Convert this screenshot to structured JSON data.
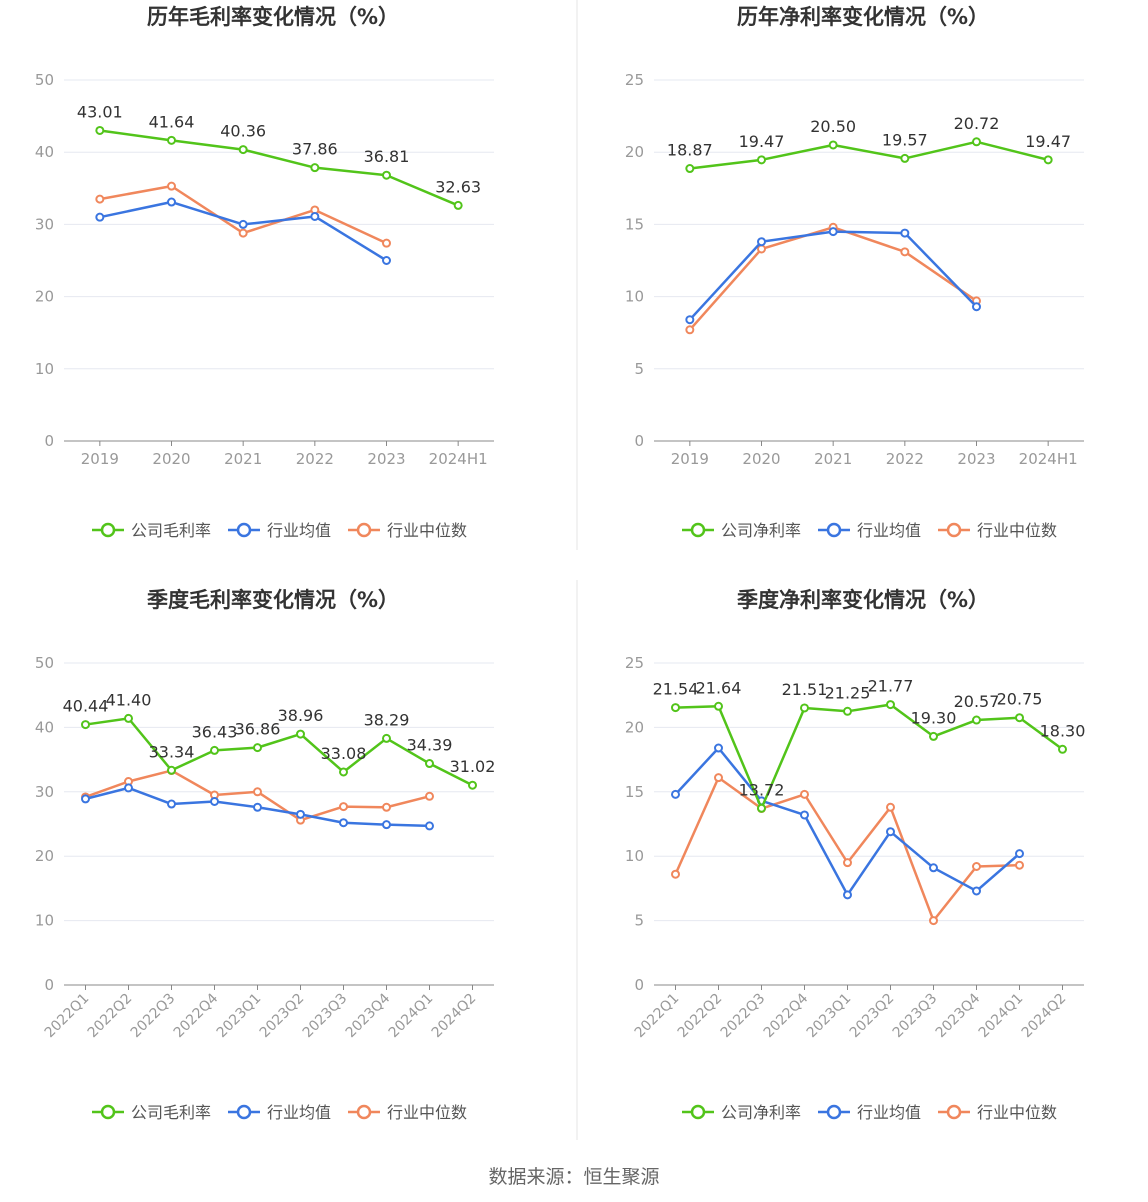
{
  "colors": {
    "company": "#52c41a",
    "industry_avg": "#3a75e0",
    "industry_median": "#f0875c",
    "axis": "#888888",
    "axis_label": "#999999",
    "grid": "#e6e8f0",
    "title": "#333333",
    "value_label": "#333333",
    "legend_text": "#555555",
    "divider": "#e5e5e5"
  },
  "legend_labels": {
    "avg": "行业均值",
    "median": "行业中位数"
  },
  "source": "数据来源：恒生聚源",
  "chart_data": [
    {
      "type": "line",
      "title": "历年毛利率变化情况（%）",
      "categories": [
        "2019",
        "2020",
        "2021",
        "2022",
        "2023",
        "2024H1"
      ],
      "ylim": [
        0,
        50
      ],
      "yticks": [
        0,
        10,
        20,
        30,
        40,
        50
      ],
      "rotate_x_labels": false,
      "grid": true,
      "legend_position": "bottom",
      "series": [
        {
          "key": "company",
          "name": "公司毛利率",
          "labels": true,
          "values": [
            43.01,
            41.64,
            40.36,
            37.86,
            36.81,
            32.63
          ]
        },
        {
          "key": "industry_avg",
          "name": "行业均值",
          "labels": false,
          "values": [
            31.0,
            33.1,
            30.0,
            31.1,
            25.0,
            null
          ]
        },
        {
          "key": "industry_median",
          "name": "行业中位数",
          "labels": false,
          "values": [
            33.5,
            35.3,
            28.8,
            32.0,
            27.4,
            null
          ]
        }
      ]
    },
    {
      "type": "line",
      "title": "历年净利率变化情况（%）",
      "categories": [
        "2019",
        "2020",
        "2021",
        "2022",
        "2023",
        "2024H1"
      ],
      "ylim": [
        0,
        25
      ],
      "yticks": [
        0,
        5,
        10,
        15,
        20,
        25
      ],
      "rotate_x_labels": false,
      "grid": true,
      "legend_position": "bottom",
      "series": [
        {
          "key": "company",
          "name": "公司净利率",
          "labels": true,
          "values": [
            18.87,
            19.47,
            20.5,
            19.57,
            20.72,
            19.47
          ]
        },
        {
          "key": "industry_avg",
          "name": "行业均值",
          "labels": false,
          "values": [
            8.4,
            13.8,
            14.5,
            14.4,
            9.3,
            null
          ]
        },
        {
          "key": "industry_median",
          "name": "行业中位数",
          "labels": false,
          "values": [
            7.7,
            13.3,
            14.8,
            13.1,
            9.7,
            null
          ]
        }
      ]
    },
    {
      "type": "line",
      "title": "季度毛利率变化情况（%）",
      "categories": [
        "2022Q1",
        "2022Q2",
        "2022Q3",
        "2022Q4",
        "2023Q1",
        "2023Q2",
        "2023Q3",
        "2023Q4",
        "2024Q1",
        "2024Q2"
      ],
      "ylim": [
        0,
        50
      ],
      "yticks": [
        0,
        10,
        20,
        30,
        40,
        50
      ],
      "rotate_x_labels": true,
      "grid": true,
      "legend_position": "bottom",
      "series": [
        {
          "key": "company",
          "name": "公司毛利率",
          "labels": true,
          "values": [
            40.44,
            41.4,
            33.34,
            36.43,
            36.86,
            38.96,
            33.08,
            38.29,
            34.39,
            31.02
          ]
        },
        {
          "key": "industry_avg",
          "name": "行业均值",
          "labels": false,
          "values": [
            28.9,
            30.6,
            28.1,
            28.5,
            27.6,
            26.5,
            25.2,
            24.9,
            24.7,
            null
          ]
        },
        {
          "key": "industry_median",
          "name": "行业中位数",
          "labels": false,
          "values": [
            29.2,
            31.6,
            33.3,
            29.5,
            30.0,
            25.6,
            27.7,
            27.6,
            29.3,
            null
          ]
        }
      ]
    },
    {
      "type": "line",
      "title": "季度净利率变化情况（%）",
      "categories": [
        "2022Q1",
        "2022Q2",
        "2022Q3",
        "2022Q4",
        "2023Q1",
        "2023Q2",
        "2023Q3",
        "2023Q4",
        "2024Q1",
        "2024Q2"
      ],
      "ylim": [
        0,
        25
      ],
      "yticks": [
        0,
        5,
        10,
        15,
        20,
        25
      ],
      "rotate_x_labels": true,
      "grid": true,
      "legend_position": "bottom",
      "series": [
        {
          "key": "company",
          "name": "公司净利率",
          "labels": true,
          "values": [
            21.54,
            21.64,
            13.72,
            21.51,
            21.25,
            21.77,
            19.3,
            20.57,
            20.75,
            18.3
          ]
        },
        {
          "key": "industry_avg",
          "name": "行业均值",
          "labels": false,
          "values": [
            14.8,
            18.4,
            14.3,
            13.2,
            7.0,
            11.9,
            9.1,
            7.3,
            10.2,
            null
          ]
        },
        {
          "key": "industry_median",
          "name": "行业中位数",
          "labels": false,
          "values": [
            8.6,
            16.1,
            13.7,
            14.8,
            9.5,
            13.8,
            5.0,
            9.2,
            9.3,
            null
          ]
        }
      ]
    }
  ]
}
